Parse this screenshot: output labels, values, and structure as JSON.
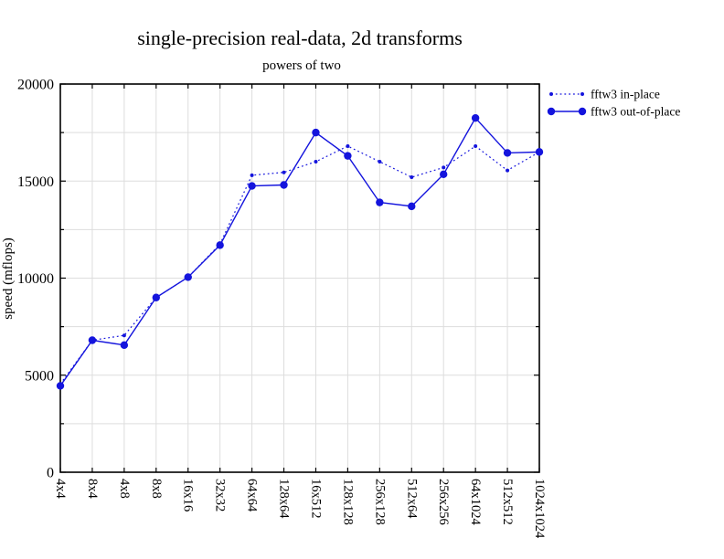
{
  "chart_data": {
    "type": "line",
    "title": "single-precision real-data, 2d transforms",
    "subtitle": "powers of two",
    "xlabel": "",
    "ylabel": "speed (mflops)",
    "ylim": [
      0,
      20000
    ],
    "ytick_major_values": [
      0,
      5000,
      10000,
      15000,
      20000
    ],
    "ytick_major_labels": [
      "0",
      "5000",
      "10000",
      "15000",
      "20000"
    ],
    "ytick_minor_step": 2500,
    "grid": true,
    "legend_position": "top-right-outside",
    "categories": [
      "4x4",
      "8x4",
      "4x8",
      "8x8",
      "16x16",
      "32x32",
      "64x64",
      "128x64",
      "16x512",
      "128x128",
      "256x128",
      "512x64",
      "256x256",
      "64x1024",
      "512x512",
      "1024x1024"
    ],
    "series": [
      {
        "name": "fftw3 in-place",
        "style": "dotted",
        "marker_radius": 2,
        "line_width": 1.2,
        "color": "#1414dd",
        "values": [
          4550,
          6800,
          7050,
          9000,
          10050,
          11750,
          15300,
          15450,
          16000,
          16800,
          16000,
          15200,
          15700,
          16800,
          15550,
          16500
        ]
      },
      {
        "name": "fftw3 out-of-place",
        "style": "solid",
        "marker_radius": 4.2,
        "line_width": 1.4,
        "color": "#1414dd",
        "values": [
          4450,
          6800,
          6550,
          9000,
          10050,
          11700,
          14750,
          14800,
          17500,
          16300,
          13900,
          13700,
          15350,
          18250,
          16450,
          16500
        ]
      }
    ],
    "colors": {
      "axis": "#000000",
      "grid": "#dddddd",
      "background": "#ffffff"
    }
  }
}
